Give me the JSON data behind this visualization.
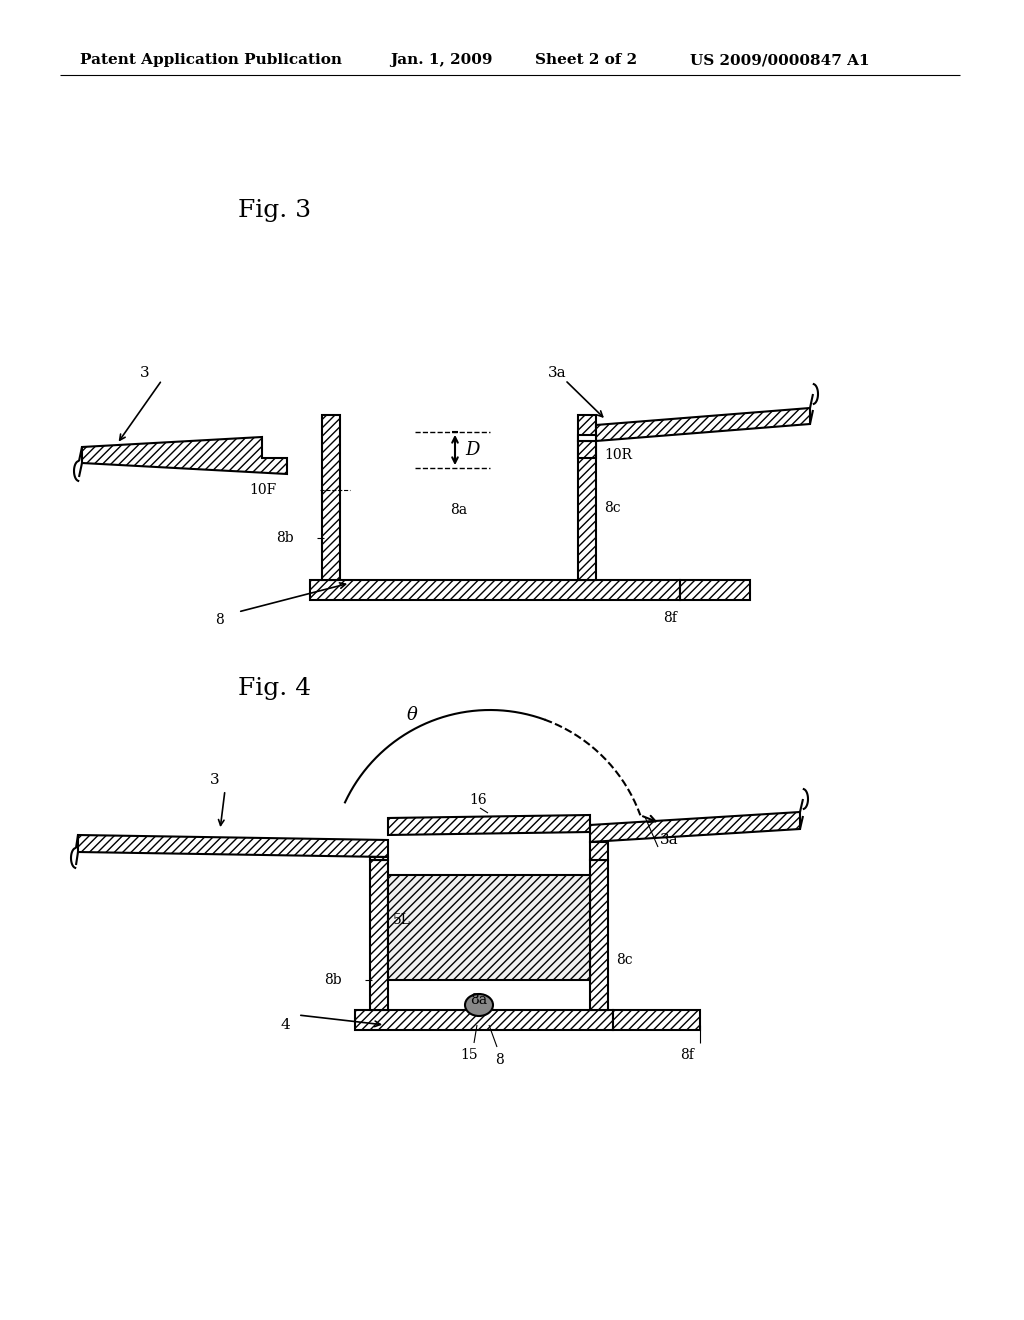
{
  "bg_color": "#ffffff",
  "header_text1": "Patent Application Publication",
  "header_text2": "Jan. 1, 2009",
  "header_text3": "Sheet 2 of 2",
  "header_text4": "US 2009/0000847 A1",
  "fig3_label": "Fig. 3",
  "fig4_label": "Fig. 4",
  "line_color": "#000000",
  "hatch_pattern": "////",
  "font_size_header": 11,
  "font_size_fig": 18,
  "font_size_label": 11
}
